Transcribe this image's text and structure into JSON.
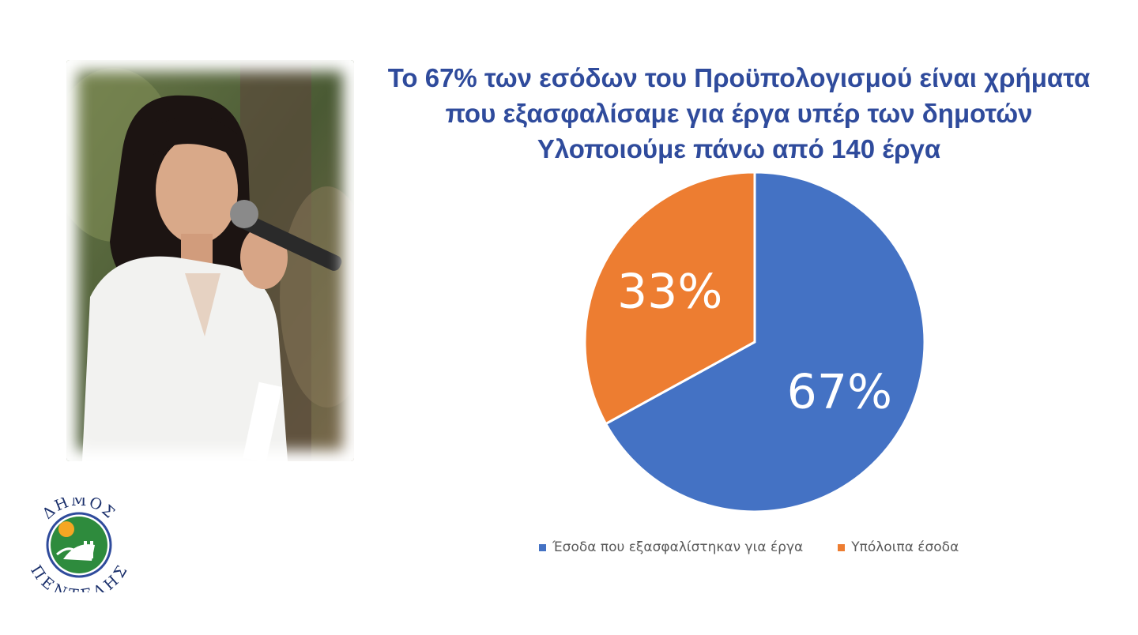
{
  "title_lines": [
    "Το 67% των εσόδων του Προϋπολογισμού είναι χρήματα",
    "που εξασφαλίσαμε για έργα υπέρ των δημοτών",
    "Υλοποιούμε πάνω από 140 έργα"
  ],
  "chart_data": {
    "type": "pie",
    "categories": [
      "Έσοδα που εξασφαλίστηκαν για έργα",
      "Υπόλοιπα έσοδα"
    ],
    "values": [
      67,
      33
    ],
    "data_labels": [
      "67%",
      "33%"
    ],
    "colors": [
      "#4472c4",
      "#ed7d31"
    ],
    "legend_position": "bottom"
  },
  "legend": [
    {
      "label": "Έσοδα που εξασφαλίστηκαν για έργα",
      "color": "#4472c4"
    },
    {
      "label": "Υπόλοιπα έσοδα",
      "color": "#ed7d31"
    }
  ],
  "logo": {
    "text_top": "ΔΗΜΟΣ",
    "text_bottom": "ΠΕΝΤΕΛΗΣ",
    "colors": {
      "green": "#2e8b3d",
      "blue": "#2f4b9c",
      "orange": "#f5a623"
    }
  },
  "colors": {
    "title": "#2f4b9c",
    "legend_text": "#595959"
  }
}
